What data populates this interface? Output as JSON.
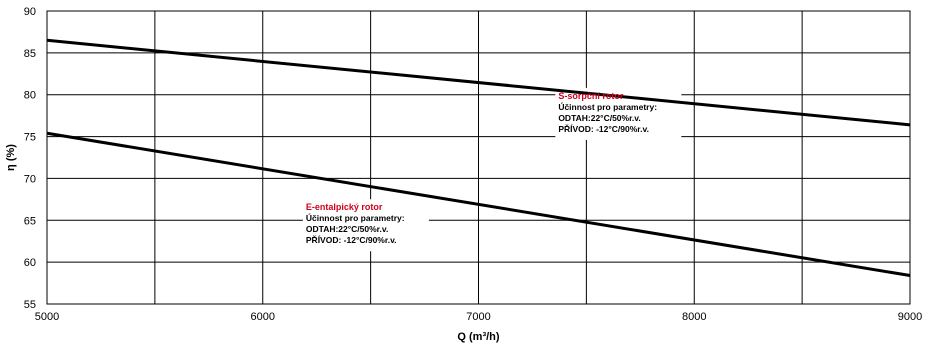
{
  "chart_data": {
    "type": "line",
    "title": "",
    "xlabel": "Q (m³/h)",
    "ylabel": "η (%)",
    "xlim": [
      5000,
      9000
    ],
    "ylim": [
      55,
      90
    ],
    "x_ticks": [
      5000,
      6000,
      7000,
      8000,
      9000
    ],
    "y_ticks": [
      55,
      60,
      65,
      70,
      75,
      80,
      85,
      90
    ],
    "grid": true,
    "grid_x_step": 500,
    "grid_y_step": 5,
    "series": [
      {
        "x": [
          5000,
          9000
        ],
        "y": [
          86.5,
          76.4
        ]
      },
      {
        "x": [
          5000,
          9000
        ],
        "y": [
          75.4,
          58.4
        ]
      }
    ],
    "annotations": [
      {
        "x": 7370,
        "y": 79.5,
        "lines": [
          "S-sorpční rotor",
          "Účinnost pro parametry:",
          "ODTAH:22°C/50%r.v.",
          "PŘÍVOD: -12°C/90%r.v."
        ]
      },
      {
        "x": 6200,
        "y": 66.2,
        "lines": [
          "E-entalpický rotor",
          "Účinnost pro parametry:",
          "ODTAH:22°C/50%r.v.",
          "PŘÍVOD: -12°C/90%r.v."
        ]
      }
    ],
    "colors": {
      "line": "#000000",
      "grid": "#000000",
      "annotation_title": "#d0021b"
    }
  }
}
